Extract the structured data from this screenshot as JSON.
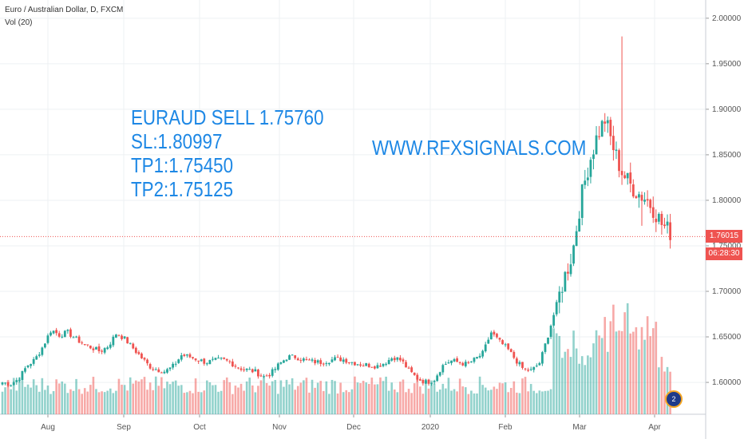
{
  "chart_header": {
    "title": "Euro / Australian Dollar, D, FXCM",
    "volume_indicator": "Vol (20)"
  },
  "annotation": {
    "signal_lines": [
      "EURAUD SELL 1.75760",
      "SL:1.80997",
      "TP1:1.75450",
      "TP2:1.75125"
    ],
    "website": "WWW.RFXSIGNALS.COM",
    "color": "#1e88e5"
  },
  "price_axis": {
    "tick_labels": [
      "2.00000",
      "1.95000",
      "1.90000",
      "1.85000",
      "1.80000",
      "1.75000",
      "1.70000",
      "1.65000",
      "1.60000"
    ],
    "current_price_label": "1.76015",
    "countdown_label": "06:28:30",
    "badge_color": "#ef5350"
  },
  "time_axis": {
    "tick_labels": [
      "Aug",
      "Sep",
      "Oct",
      "Nov",
      "Dec",
      "2020",
      "Feb",
      "Mar",
      "Apr"
    ]
  },
  "corner_badge": {
    "label": "2"
  },
  "colors": {
    "up": "#26a69a",
    "down": "#ef5350",
    "grid": "#eef0f3"
  },
  "chart_data": {
    "type": "candlestick",
    "symbol": "EURAUD",
    "timeframe": "D",
    "title": "Euro / Australian Dollar, D, FXCM",
    "ylim": [
      1.565,
      2.02
    ],
    "current_price": 1.76015,
    "x_ticks": [
      "Aug",
      "Sep",
      "Oct",
      "Nov",
      "Dec",
      "2020",
      "Feb",
      "Mar",
      "Apr"
    ],
    "anchor_closes": [
      1.6,
      1.598,
      1.604,
      1.618,
      1.625,
      1.64,
      1.658,
      1.652,
      1.655,
      1.648,
      1.642,
      1.638,
      1.634,
      1.64,
      1.654,
      1.648,
      1.638,
      1.628,
      1.618,
      1.614,
      1.612,
      1.618,
      1.63,
      1.628,
      1.625,
      1.622,
      1.624,
      1.625,
      1.622,
      1.616,
      1.614,
      1.612,
      1.606,
      1.61,
      1.62,
      1.628,
      1.628,
      1.625,
      1.623,
      1.622,
      1.624,
      1.626,
      1.625,
      1.622,
      1.62,
      1.619,
      1.618,
      1.622,
      1.628,
      1.624,
      1.612,
      1.604,
      1.6,
      1.603,
      1.618,
      1.624,
      1.622,
      1.62,
      1.625,
      1.632,
      1.655,
      1.645,
      1.637,
      1.625,
      1.614,
      1.613,
      1.622,
      1.652,
      1.684,
      1.715,
      1.742,
      1.8,
      1.84,
      1.87,
      1.889,
      1.858,
      1.832,
      1.818,
      1.808,
      1.802,
      1.79,
      1.773,
      1.765
    ],
    "volume_profile": "moderate through Jul-Feb, rising sharply in March, easing into April"
  }
}
